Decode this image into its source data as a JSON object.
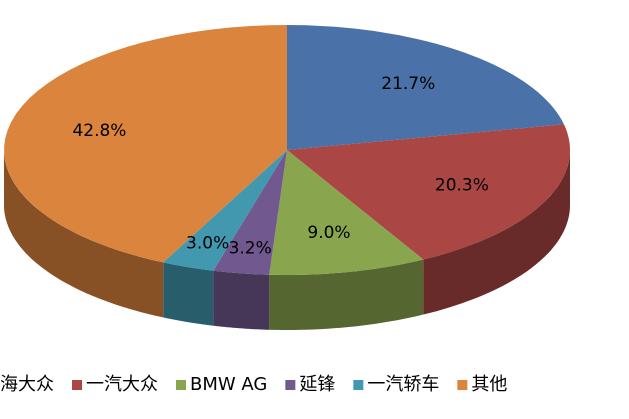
{
  "chart_data": {
    "type": "pie",
    "categories": [
      "海大众",
      "一汽大众",
      "BMW AG",
      "延锋",
      "一汽轿车",
      "其他"
    ],
    "values": [
      21.7,
      20.3,
      9.0,
      3.2,
      3.0,
      42.8
    ],
    "value_labels": [
      "21.7%",
      "20.3%",
      "9.0%",
      "3.2%",
      "3.0%",
      "42.8%"
    ],
    "colors": [
      "#4a72a8",
      "#aa4643",
      "#89a54e",
      "#71588f",
      "#4198af",
      "#db843d"
    ],
    "legend": "bottom"
  }
}
